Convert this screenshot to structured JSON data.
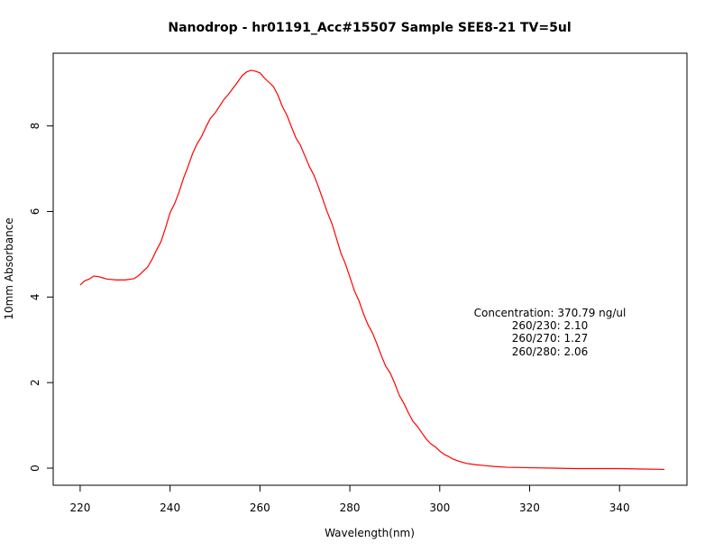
{
  "chart_data": {
    "type": "line",
    "title": "Nanodrop - hr01191_Acc#15507  Sample SEE8-21  TV=5ul",
    "xlabel": "Wavelength(nm)",
    "ylabel": "10mm Absorbance",
    "xlim": [
      214,
      355
    ],
    "ylim": [
      -0.4,
      9.7
    ],
    "xticks": [
      220,
      240,
      260,
      280,
      300,
      320,
      340
    ],
    "yticks": [
      0,
      2,
      4,
      6,
      8
    ],
    "grid": false,
    "series": [
      {
        "color": "#ff0000",
        "x": [
          220,
          221,
          222,
          223,
          224,
          225,
          226,
          228,
          230,
          232,
          233,
          234,
          235,
          236,
          237,
          238,
          239,
          240,
          241,
          242,
          243,
          244,
          245,
          246,
          247,
          248,
          249,
          250,
          251,
          252,
          253,
          254,
          255,
          256,
          257,
          258,
          259,
          260,
          261,
          262,
          263,
          264,
          265,
          266,
          267,
          268,
          269,
          270,
          271,
          272,
          273,
          274,
          275,
          276,
          277,
          278,
          279,
          280,
          281,
          282,
          283,
          284,
          285,
          286,
          287,
          288,
          289,
          290,
          291,
          292,
          293,
          294,
          295,
          296,
          297,
          298,
          299,
          300,
          301,
          302,
          303,
          304,
          305,
          306,
          308,
          310,
          312,
          315,
          320,
          325,
          330,
          335,
          340,
          345,
          350
        ],
        "y": [
          4.28,
          4.38,
          4.42,
          4.49,
          4.48,
          4.45,
          4.42,
          4.4,
          4.4,
          4.43,
          4.5,
          4.6,
          4.7,
          4.88,
          5.1,
          5.3,
          5.62,
          5.97,
          6.18,
          6.45,
          6.78,
          7.05,
          7.35,
          7.58,
          7.75,
          7.98,
          8.18,
          8.3,
          8.46,
          8.62,
          8.74,
          8.88,
          9.02,
          9.17,
          9.26,
          9.3,
          9.28,
          9.24,
          9.12,
          9.02,
          8.92,
          8.72,
          8.45,
          8.25,
          7.98,
          7.72,
          7.55,
          7.3,
          7.05,
          6.85,
          6.58,
          6.28,
          5.98,
          5.72,
          5.38,
          5.03,
          4.78,
          4.47,
          4.15,
          3.92,
          3.62,
          3.36,
          3.17,
          2.91,
          2.63,
          2.38,
          2.22,
          1.98,
          1.7,
          1.52,
          1.3,
          1.1,
          0.98,
          0.83,
          0.68,
          0.57,
          0.5,
          0.4,
          0.32,
          0.27,
          0.21,
          0.17,
          0.14,
          0.11,
          0.08,
          0.06,
          0.04,
          0.02,
          0.01,
          0.0,
          -0.01,
          -0.01,
          -0.01,
          -0.02,
          -0.03
        ]
      }
    ],
    "annotation": {
      "lines": [
        "Concentration: 370.79 ng/ul",
        "260/230: 2.10",
        "260/270: 1.27",
        "260/280: 2.06"
      ]
    }
  }
}
